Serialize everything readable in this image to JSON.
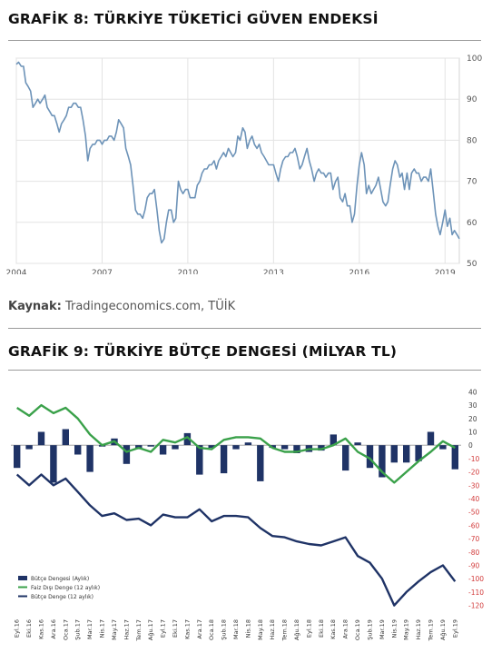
{
  "chart1": {
    "title": "GRAFİK 8: TÜRKİYE TÜKETİCİ GÜVEN ENDEKSİ",
    "source_label": "Kaynak:",
    "source_text": "Tradingeconomics.com, TÜİK"
  },
  "chart2": {
    "title": "GRAFİK 9: TÜRKİYE BÜTÇE DENGESİ (MİLYAR TL)"
  },
  "colors": {
    "line1": "#6d93b8",
    "bar": "#1f3366",
    "faiz_dis": "#3aa14a",
    "butce12": "#1f3366",
    "grid": "#e3e3e3"
  },
  "chart_data": [
    {
      "type": "line",
      "title": "",
      "xlabel": "",
      "ylabel": "",
      "x_ticks": [
        "2004",
        "2007",
        "2010",
        "2013",
        "2016",
        "2019"
      ],
      "y_ticks": [
        100,
        90,
        80,
        70,
        60,
        50
      ],
      "ylim": [
        50,
        100
      ],
      "xlim": [
        2004.0,
        2019.5
      ],
      "grid": true,
      "series": [
        {
          "x": [
            2004.0,
            2004.08,
            2004.17,
            2004.25,
            2004.33,
            2004.42,
            2004.5,
            2004.58,
            2004.67,
            2004.75,
            2004.83,
            2004.92,
            2005.0,
            2005.08,
            2005.17,
            2005.25,
            2005.33,
            2005.42,
            2005.5,
            2005.58,
            2005.67,
            2005.75,
            2005.83,
            2005.92,
            2006.0,
            2006.08,
            2006.17,
            2006.25,
            2006.33,
            2006.42,
            2006.5,
            2006.58,
            2006.67,
            2006.75,
            2006.83,
            2006.92,
            2007.0,
            2007.08,
            2007.17,
            2007.25,
            2007.33,
            2007.42,
            2007.5,
            2007.58,
            2007.67,
            2007.75,
            2007.83,
            2007.92,
            2008.0,
            2008.08,
            2008.17,
            2008.25,
            2008.33,
            2008.42,
            2008.5,
            2008.58,
            2008.67,
            2008.75,
            2008.83,
            2008.92,
            2009.0,
            2009.08,
            2009.17,
            2009.25,
            2009.33,
            2009.42,
            2009.5,
            2009.58,
            2009.67,
            2009.75,
            2009.83,
            2009.92,
            2010.0,
            2010.08,
            2010.17,
            2010.25,
            2010.33,
            2010.42,
            2010.5,
            2010.58,
            2010.67,
            2010.75,
            2010.83,
            2010.92,
            2011.0,
            2011.08,
            2011.17,
            2011.25,
            2011.33,
            2011.42,
            2011.5,
            2011.58,
            2011.67,
            2011.75,
            2011.83,
            2011.92,
            2012.0,
            2012.08,
            2012.17,
            2012.25,
            2012.33,
            2012.42,
            2012.5,
            2012.58,
            2012.67,
            2012.75,
            2012.83,
            2012.92,
            2013.0,
            2013.08,
            2013.17,
            2013.25,
            2013.33,
            2013.42,
            2013.5,
            2013.58,
            2013.67,
            2013.75,
            2013.83,
            2013.92,
            2014.0,
            2014.08,
            2014.17,
            2014.25,
            2014.33,
            2014.42,
            2014.5,
            2014.58,
            2014.67,
            2014.75,
            2014.83,
            2014.92,
            2015.0,
            2015.08,
            2015.17,
            2015.25,
            2015.33,
            2015.42,
            2015.5,
            2015.58,
            2015.67,
            2015.75,
            2015.83,
            2015.92,
            2016.0,
            2016.08,
            2016.17,
            2016.25,
            2016.33,
            2016.42,
            2016.5,
            2016.58,
            2016.67,
            2016.75,
            2016.83,
            2016.92,
            2017.0,
            2017.08,
            2017.17,
            2017.25,
            2017.33,
            2017.42,
            2017.5,
            2017.58,
            2017.67,
            2017.75,
            2017.83,
            2017.92,
            2018.0,
            2018.08,
            2018.17,
            2018.25,
            2018.33,
            2018.42,
            2018.5,
            2018.58,
            2018.67,
            2018.75,
            2018.83,
            2018.92,
            2019.0,
            2019.08,
            2019.17,
            2019.25,
            2019.33,
            2019.42,
            2019.5
          ],
          "y": [
            98.5,
            99,
            98,
            98,
            94,
            93,
            92,
            88,
            89,
            90,
            89,
            90,
            91,
            88,
            87,
            86,
            86,
            84,
            82,
            84,
            85,
            86,
            88,
            88,
            89,
            89,
            88,
            88,
            85,
            81,
            75,
            78,
            79,
            79,
            80,
            80,
            79,
            80,
            80,
            81,
            81,
            80,
            82,
            85,
            84,
            83,
            78,
            76,
            74,
            69,
            63,
            62,
            62,
            61,
            63,
            66,
            67,
            67,
            68,
            63,
            58,
            55,
            56,
            60,
            63,
            63,
            60,
            61,
            70,
            68,
            67,
            68,
            68,
            66,
            66,
            66,
            69,
            70,
            72,
            73,
            73,
            74,
            74,
            75,
            73,
            75,
            76,
            77,
            76,
            78,
            77,
            76,
            77,
            81,
            80,
            83,
            82,
            78,
            80,
            81,
            79,
            78,
            79,
            77,
            76,
            75,
            74,
            74,
            74,
            72,
            70,
            73,
            75,
            76,
            76,
            77,
            77,
            78,
            76,
            73,
            74,
            76,
            78,
            75,
            73,
            70,
            72,
            73,
            72,
            72,
            71,
            72,
            72,
            68,
            70,
            71,
            66,
            65,
            67,
            64,
            64,
            60,
            62,
            69,
            74,
            77,
            74,
            67,
            69,
            67,
            68,
            69,
            71,
            68,
            65,
            64,
            65,
            69,
            73,
            75,
            74,
            71,
            72,
            68,
            72,
            68,
            72,
            73,
            72,
            72,
            70,
            71,
            71,
            70,
            73,
            68,
            62,
            59,
            57,
            60,
            63,
            59,
            61,
            57,
            58,
            57,
            56
          ]
        }
      ]
    },
    {
      "type": "bar",
      "title": "",
      "xlabel": "",
      "ylabel": "",
      "categories": [
        "Eyl.16",
        "Eki.16",
        "Kas.16",
        "Ara.16",
        "Oca.17",
        "Şub.17",
        "Mar.17",
        "Nis.17",
        "May.17",
        "Haz.17",
        "Tem.17",
        "Ağu.17",
        "Eyl.17",
        "Eki.17",
        "Kas.17",
        "Ara.17",
        "Oca.18",
        "Şub.18",
        "Mar.18",
        "Nis.18",
        "May.18",
        "Haz.18",
        "Tem.18",
        "Ağu.18",
        "Eyl.18",
        "Eki.18",
        "Kas.18",
        "Ara.18",
        "Oca.19",
        "Şub.19",
        "Mar.19",
        "Nis.19",
        "May.19",
        "Haz.19",
        "Tem.19",
        "Ağu.19",
        "Eyl.19"
      ],
      "y_ticks": [
        40,
        30,
        20,
        10,
        0,
        -10,
        -20,
        -30,
        -40,
        -50,
        -60,
        -70,
        -80,
        -90,
        -100,
        -110,
        -120
      ],
      "ylim": [
        -125,
        45
      ],
      "legend_position": "bottom-left",
      "series": [
        {
          "name": "Bütçe Dengesi (Aylık)",
          "type": "bar",
          "values": [
            -17,
            -3,
            10,
            -28,
            12,
            -7,
            -20,
            -1,
            5,
            -14,
            -3,
            -1,
            -7,
            -3,
            9,
            -22,
            -2,
            -21,
            -3,
            2,
            -27,
            -2,
            -3,
            -6,
            -5,
            -4,
            8,
            -19,
            2,
            -17,
            -24,
            -13,
            -13,
            -12,
            10,
            -3,
            -18
          ]
        },
        {
          "name": "Faiz Dışı Denge (12 aylık)",
          "type": "line",
          "values": [
            28,
            22,
            30,
            24,
            28,
            20,
            8,
            0,
            3,
            -5,
            -2,
            -5,
            4,
            2,
            6,
            -2,
            -3,
            4,
            6,
            6,
            5,
            -2,
            -5,
            -5,
            -3,
            -3,
            0,
            5,
            -5,
            -10,
            -20,
            -28,
            -20,
            -12,
            -5,
            3,
            -2
          ]
        },
        {
          "name": "Bütçe Denge (12 aylık)",
          "type": "line",
          "values": [
            -22,
            -30,
            -22,
            -30,
            -25,
            -35,
            -45,
            -53,
            -51,
            -56,
            -55,
            -60,
            -52,
            -54,
            -54,
            -48,
            -57,
            -53,
            -53,
            -54,
            -62,
            -68,
            -69,
            -72,
            -74,
            -75,
            -72,
            -69,
            -83,
            -88,
            -100,
            -120,
            -110,
            -102,
            -95,
            -90,
            -102
          ]
        }
      ]
    }
  ]
}
